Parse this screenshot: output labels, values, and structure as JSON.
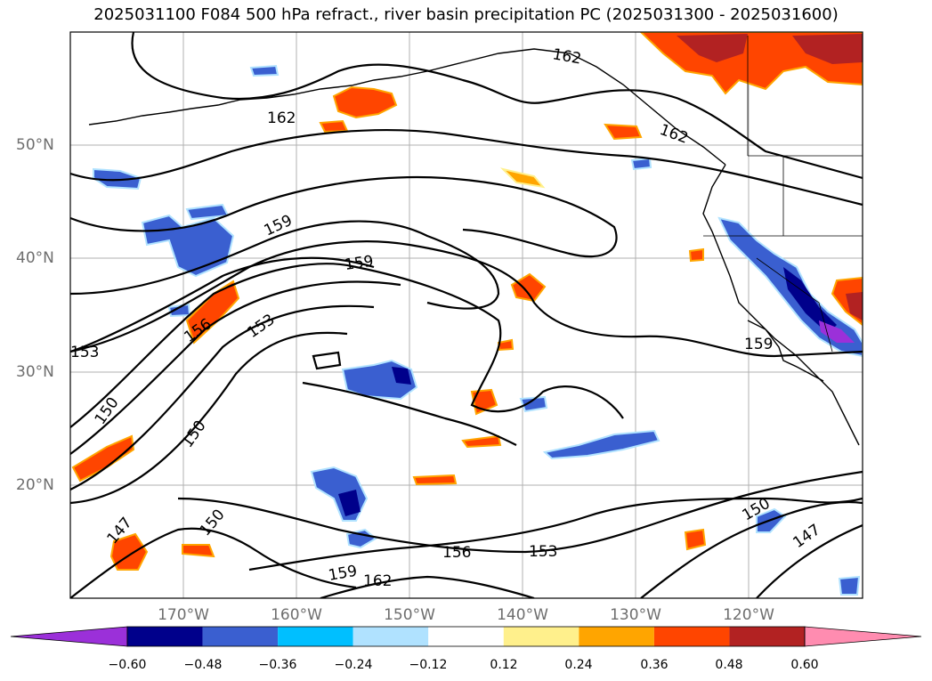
{
  "title": "2025031100 F084 500 hPa refract., river basin precipitation PC (2025031300 - 2025031600)",
  "lat_labels": [
    "50°N",
    "40°N",
    "30°N",
    "20°N"
  ],
  "lon_labels": [
    "170°W",
    "160°W",
    "150°W",
    "140°W",
    "130°W",
    "120°W"
  ],
  "contour_labels": [
    "162",
    "162",
    "162",
    "162",
    "159",
    "159",
    "159",
    "159",
    "156",
    "156",
    "153",
    "153",
    "153",
    "150",
    "150",
    "150",
    "150",
    "147",
    "147"
  ],
  "colorbar": {
    "tick_labels": [
      "−0.60",
      "−0.48",
      "−0.36",
      "−0.24",
      "−0.12",
      "0.12",
      "0.24",
      "0.36",
      "0.48",
      "0.60"
    ],
    "colors": [
      "#9b30d9",
      "#00008b",
      "#3a5fd0",
      "#00bfff",
      "#b0e2ff",
      "#ffffff",
      "#fff08c",
      "#ffa500",
      "#ff4500",
      "#b22222",
      "#ff8cb0"
    ]
  },
  "colors": {
    "positive_orange": "#ff4500",
    "positive_red": "#b22222",
    "negative_blue": "#3a5fd0",
    "negative_navy": "#00008b",
    "grid": "#b0b0b0",
    "tick_text": "#6e6e6e"
  }
}
